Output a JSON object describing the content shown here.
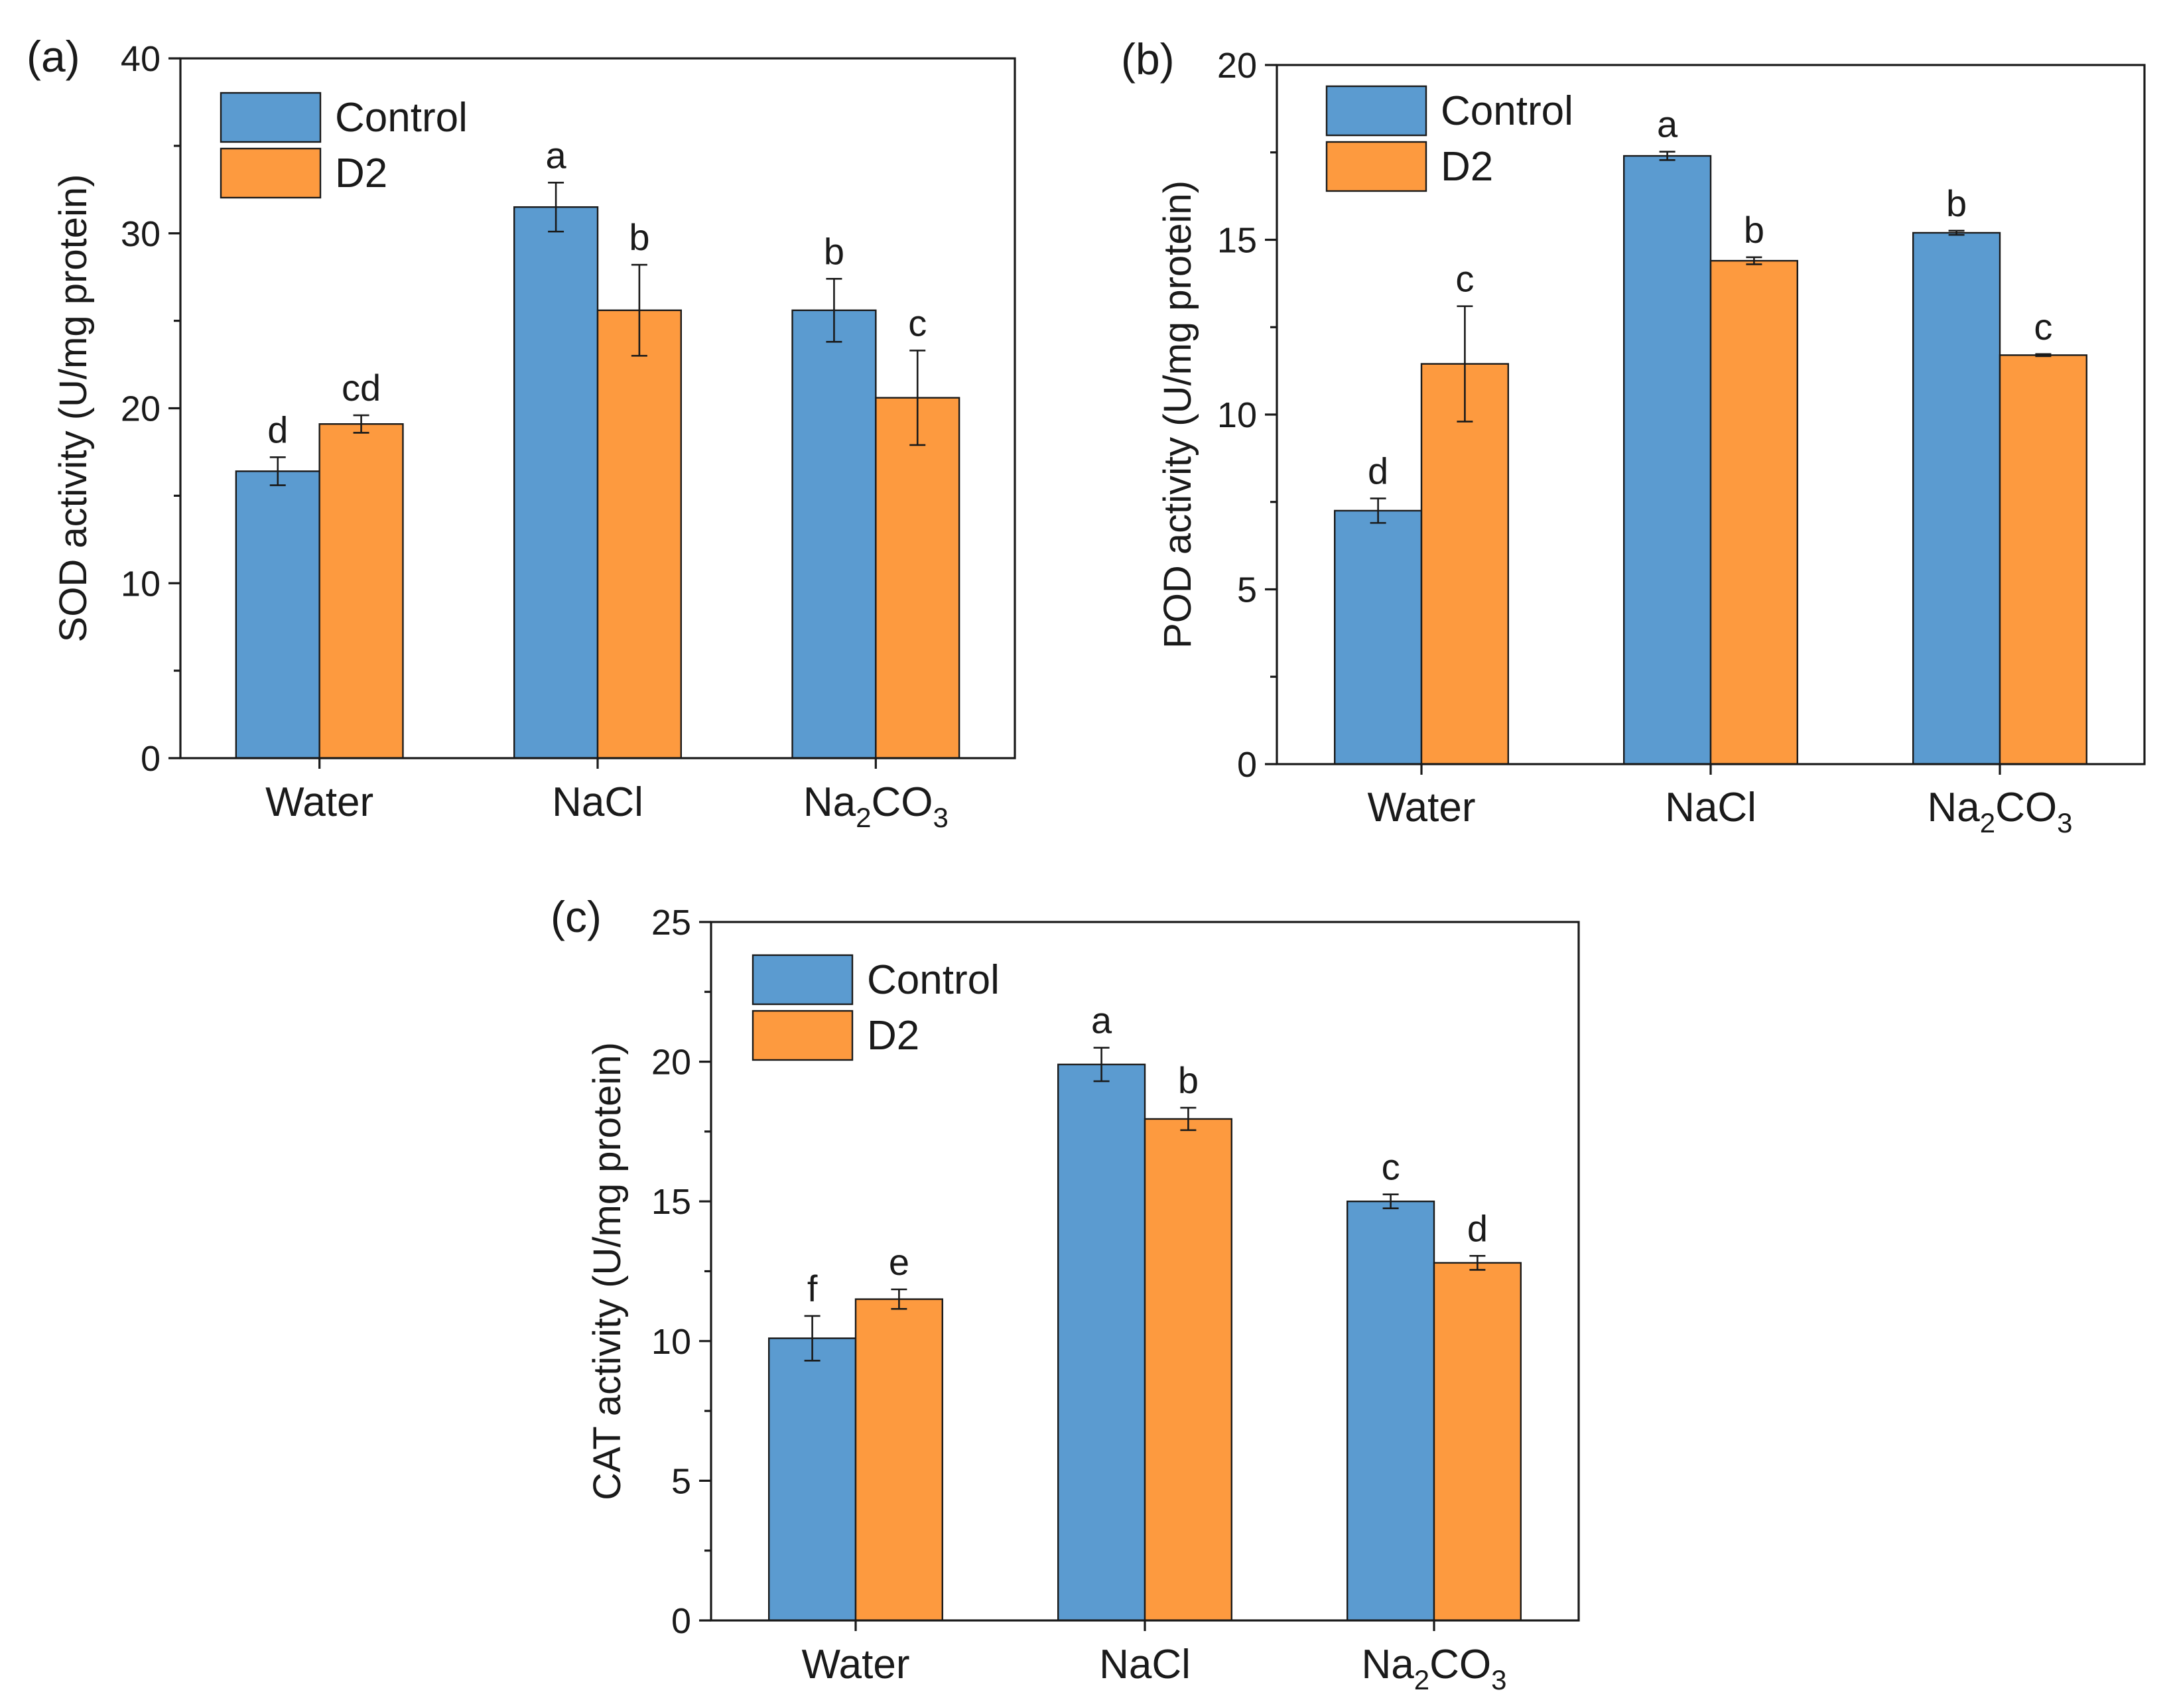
{
  "chart_data": [
    {
      "type": "bar",
      "panel": "(a)",
      "ylabel": "SOD activity (U/mg protein)",
      "ylim": [
        0,
        40
      ],
      "yticks": [
        0,
        10,
        20,
        30,
        40
      ],
      "categories": [
        "Water",
        "NaCl",
        "Na2CO3"
      ],
      "legend": {
        "placement": "top-left",
        "entries": [
          "Control",
          "D2"
        ]
      },
      "series": [
        {
          "name": "Control",
          "color": "#5b9bd0",
          "values": [
            16.4,
            31.5,
            25.6
          ],
          "errors": [
            0.8,
            1.4,
            1.8
          ],
          "letters": [
            "d",
            "a",
            "b"
          ]
        },
        {
          "name": "D2",
          "color": "#fd9a3f",
          "values": [
            19.1,
            25.6,
            20.6
          ],
          "errors": [
            0.5,
            2.6,
            2.7
          ],
          "letters": [
            "cd",
            "b",
            "c"
          ]
        }
      ]
    },
    {
      "type": "bar",
      "panel": "(b)",
      "ylabel": "POD activity (U/mg protein)",
      "ylim": [
        0,
        20
      ],
      "yticks": [
        0,
        5,
        10,
        15,
        20
      ],
      "categories": [
        "Water",
        "NaCl",
        "Na2CO3"
      ],
      "legend": {
        "placement": "top-left",
        "entries": [
          "Control",
          "D2"
        ]
      },
      "series": [
        {
          "name": "Control",
          "color": "#5b9bd0",
          "values": [
            7.25,
            17.4,
            15.2
          ],
          "errors": [
            0.35,
            0.12,
            0.06
          ],
          "letters": [
            "d",
            "a",
            "b"
          ]
        },
        {
          "name": "D2",
          "color": "#fd9a3f",
          "values": [
            11.45,
            14.4,
            11.7
          ],
          "errors": [
            1.65,
            0.1,
            0.03
          ],
          "letters": [
            "c",
            "b",
            "c"
          ]
        }
      ]
    },
    {
      "type": "bar",
      "panel": "(c)",
      "ylabel": "CAT activity (U/mg protein)",
      "ylim": [
        0,
        25
      ],
      "yticks": [
        0,
        5,
        10,
        15,
        20,
        25
      ],
      "categories": [
        "Water",
        "NaCl",
        "Na2CO3"
      ],
      "legend": {
        "placement": "top-left",
        "entries": [
          "Control",
          "D2"
        ]
      },
      "series": [
        {
          "name": "Control",
          "color": "#5b9bd0",
          "values": [
            10.1,
            19.9,
            15.0
          ],
          "errors": [
            0.8,
            0.6,
            0.25
          ],
          "letters": [
            "f",
            "a",
            "c"
          ]
        },
        {
          "name": "D2",
          "color": "#fd9a3f",
          "values": [
            11.5,
            17.95,
            12.8
          ],
          "errors": [
            0.35,
            0.4,
            0.25
          ],
          "letters": [
            "e",
            "b",
            "d"
          ]
        }
      ]
    }
  ]
}
